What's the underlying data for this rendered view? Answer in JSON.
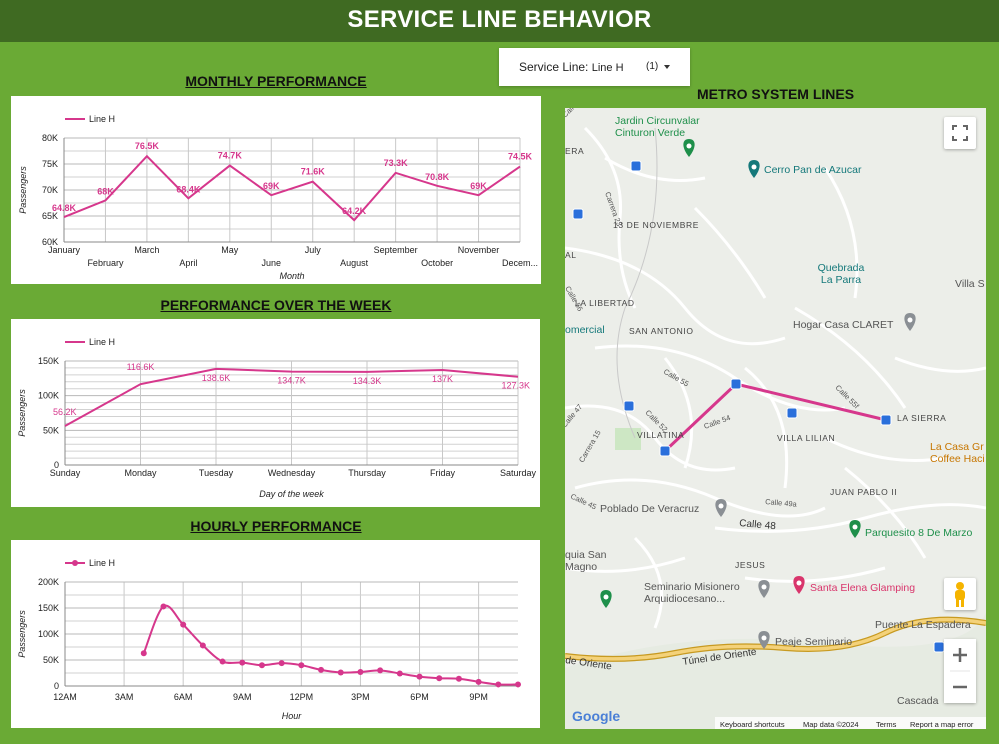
{
  "header": {
    "title": "SERVICE LINE BEHAVIOR"
  },
  "filter": {
    "label": "Service Line",
    "value": "Line H",
    "count": "(1)"
  },
  "sections": {
    "monthly": "MONTHLY PERFORMANCE",
    "weekly": "PERFORMANCE OVER THE WEEK",
    "hourly": "HOURLY PERFORMANCE",
    "map": "METRO SYSTEM LINES"
  },
  "colors": {
    "line": "#d6378c",
    "header_bg": "#3f6a22",
    "page_bg": "#6aaa35"
  },
  "chart_data": [
    {
      "type": "line",
      "title": "MONTHLY PERFORMANCE",
      "xlabel": "Month",
      "ylabel": "Passengers",
      "legend": "top-left",
      "categories": [
        "January",
        "February",
        "March",
        "April",
        "May",
        "June",
        "July",
        "August",
        "September",
        "October",
        "November",
        "Decem..."
      ],
      "series": [
        {
          "name": "Line H",
          "values": [
            64800,
            68000,
            76500,
            68400,
            74700,
            69000,
            71600,
            64200,
            73300,
            70800,
            69000,
            74500
          ]
        }
      ],
      "labels": [
        "64.8K",
        "68K",
        "76.5K",
        "68.4K",
        "74.7K",
        "69K",
        "71.6K",
        "64.2K",
        "73.3K",
        "70.8K",
        "69K",
        "74.5K"
      ],
      "yticks": [
        "60K",
        "65K",
        "70K",
        "75K",
        "80K"
      ],
      "ylim": [
        60000,
        80000
      ]
    },
    {
      "type": "line",
      "title": "PERFORMANCE OVER THE WEEK",
      "xlabel": "Day of the week",
      "ylabel": "Passengers",
      "legend": "top-left",
      "categories": [
        "Sunday",
        "Monday",
        "Tuesday",
        "Wednesday",
        "Thursday",
        "Friday",
        "Saturday"
      ],
      "series": [
        {
          "name": "Line H",
          "values": [
            56200,
            116600,
            138600,
            134700,
            134300,
            137000,
            127300
          ]
        }
      ],
      "labels": [
        "56.2K",
        "116.6K",
        "138.6K",
        "134.7K",
        "134.3K",
        "137K",
        "127.3K"
      ],
      "yticks": [
        "0",
        "50K",
        "100K",
        "150K"
      ],
      "ylim": [
        0,
        150000
      ]
    },
    {
      "type": "line",
      "title": "HOURLY PERFORMANCE",
      "xlabel": "Hour",
      "ylabel": "Passengers",
      "legend": "top-left",
      "x_ticks": [
        "12AM",
        "3AM",
        "6AM",
        "9AM",
        "12PM",
        "3PM",
        "6PM",
        "9PM"
      ],
      "series": [
        {
          "name": "Line H",
          "x": [
            4,
            5,
            6,
            7,
            8,
            9,
            10,
            11,
            12,
            13,
            14,
            15,
            16,
            17,
            18,
            19,
            20,
            21,
            22,
            23
          ],
          "values": [
            63000,
            153000,
            118000,
            78000,
            47000,
            45000,
            40000,
            44000,
            40000,
            31000,
            26000,
            27000,
            30000,
            24000,
            18000,
            15000,
            14000,
            8000,
            3000,
            3000
          ]
        }
      ],
      "yticks": [
        "0",
        "50K",
        "100K",
        "150K",
        "200K"
      ],
      "ylim": [
        0,
        200000
      ]
    }
  ],
  "map": {
    "places": [
      {
        "name": "Jardin Circunvalar - Cinturon Verde",
        "lines": [
          "Jardin Circunvalar",
          "Cinturon Verde"
        ],
        "color": "#1e8f4a"
      },
      {
        "name": "Cerro Pan de Azucar",
        "lines": [
          "Cerro Pan de Azucar"
        ],
        "color": "#14787a"
      },
      {
        "name": "Quebrada La Parra",
        "lines": [
          "Quebrada",
          "La Parra"
        ],
        "color": "#14787a"
      },
      {
        "name": "Hogar Casa CLARET",
        "lines": [
          "Hogar Casa CLARET"
        ],
        "color": "#555555"
      },
      {
        "name": "La Casa Gr Coffee Haci",
        "lines": [
          "La Casa Gr",
          "Coffee Haci"
        ],
        "color": "#c77600"
      },
      {
        "name": "Poblado De Veracruz",
        "lines": [
          "Poblado De Veracruz"
        ],
        "color": "#555555"
      },
      {
        "name": "Parquesito 8 De Marzo",
        "lines": [
          "Parquesito 8 De Marzo"
        ],
        "color": "#1e8f4a"
      },
      {
        "name": "Seminario Misionero Arquidiocesano...",
        "lines": [
          "Seminario Misionero",
          "Arquidiocesano..."
        ],
        "color": "#555555"
      },
      {
        "name": "Santa Elena Glamping",
        "lines": [
          "Santa Elena Glamping"
        ],
        "color": "#d9356c"
      },
      {
        "name": "Puente La Espadera",
        "lines": [
          "Puente La Espadera"
        ],
        "color": "#555555"
      },
      {
        "name": "Peaje Seminario",
        "lines": [
          "Peaje Seminario"
        ],
        "color": "#555555"
      },
      {
        "name": "Cascada",
        "lines": [
          "Cascada"
        ],
        "color": "#555555"
      },
      {
        "name": "Villa S",
        "lines": [
          "Villa S"
        ],
        "color": "#555555"
      },
      {
        "name": "quia San Magno",
        "lines": [
          "quia San",
          "Magno"
        ],
        "color": "#555555"
      },
      {
        "name": "omercial",
        "lines": [
          "omercial"
        ],
        "color": "#14787a"
      }
    ],
    "areas": [
      "13 DE NOVIEMBRE",
      "LA LIBERTAD",
      "SAN ANTONIO",
      "VILLATINA",
      "VILLA LILIAN",
      "LA SIERRA",
      "JUAN PABLO II",
      "JESUS",
      "ERA",
      "AL"
    ],
    "streets": [
      "Calle 54",
      "Calle 55",
      "Calle 52",
      "Calle 45",
      "Calle 49a",
      "Calle 48",
      "Carrera 15",
      "Carrera 23",
      "Calle 56",
      "Calle 47",
      "Calle 55f",
      "Calle 57c",
      "Túnel de Oriente",
      "de Oriente"
    ],
    "footer": {
      "brand": "Google",
      "shortcuts": "Keyboard shortcuts",
      "data": "Map data ©2024",
      "terms": "Terms",
      "report": "Report a map error"
    }
  }
}
